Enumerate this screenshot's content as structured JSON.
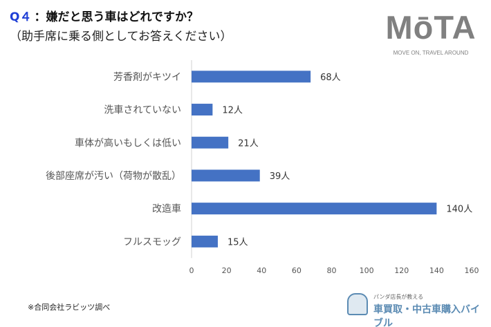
{
  "header": {
    "question_number": "Q４",
    "question": "：嫌だと思う車はどれですか？",
    "subtitle": "（助手席に乗る側としてお答えください）"
  },
  "logo": {
    "text": "MōTA",
    "tagline": "MOVE ON, TRAVEL AROUND"
  },
  "footer": {
    "source": "※合同会社ラビッツ調べ",
    "brand_small": "パンダ店長が教える",
    "brand_main": "車買取・中古車購入バイブル"
  },
  "chart_data": {
    "type": "bar",
    "orientation": "horizontal",
    "categories": [
      "芳香剤がキツイ",
      "洗車されていない",
      "車体が高いもしくは低い",
      "後部座席が汚い（荷物が散乱）",
      "改造車",
      "フルスモッグ"
    ],
    "values": [
      68,
      12,
      21,
      39,
      140,
      15
    ],
    "data_labels": [
      "68人",
      "12人",
      "21人",
      "39人",
      "140人",
      "15人"
    ],
    "xlim": [
      0,
      160
    ],
    "xticks": [
      "0",
      "20",
      "40",
      "60",
      "80",
      "100",
      "120",
      "140",
      "160"
    ],
    "grid": false,
    "bar_color": "#4472c4"
  }
}
